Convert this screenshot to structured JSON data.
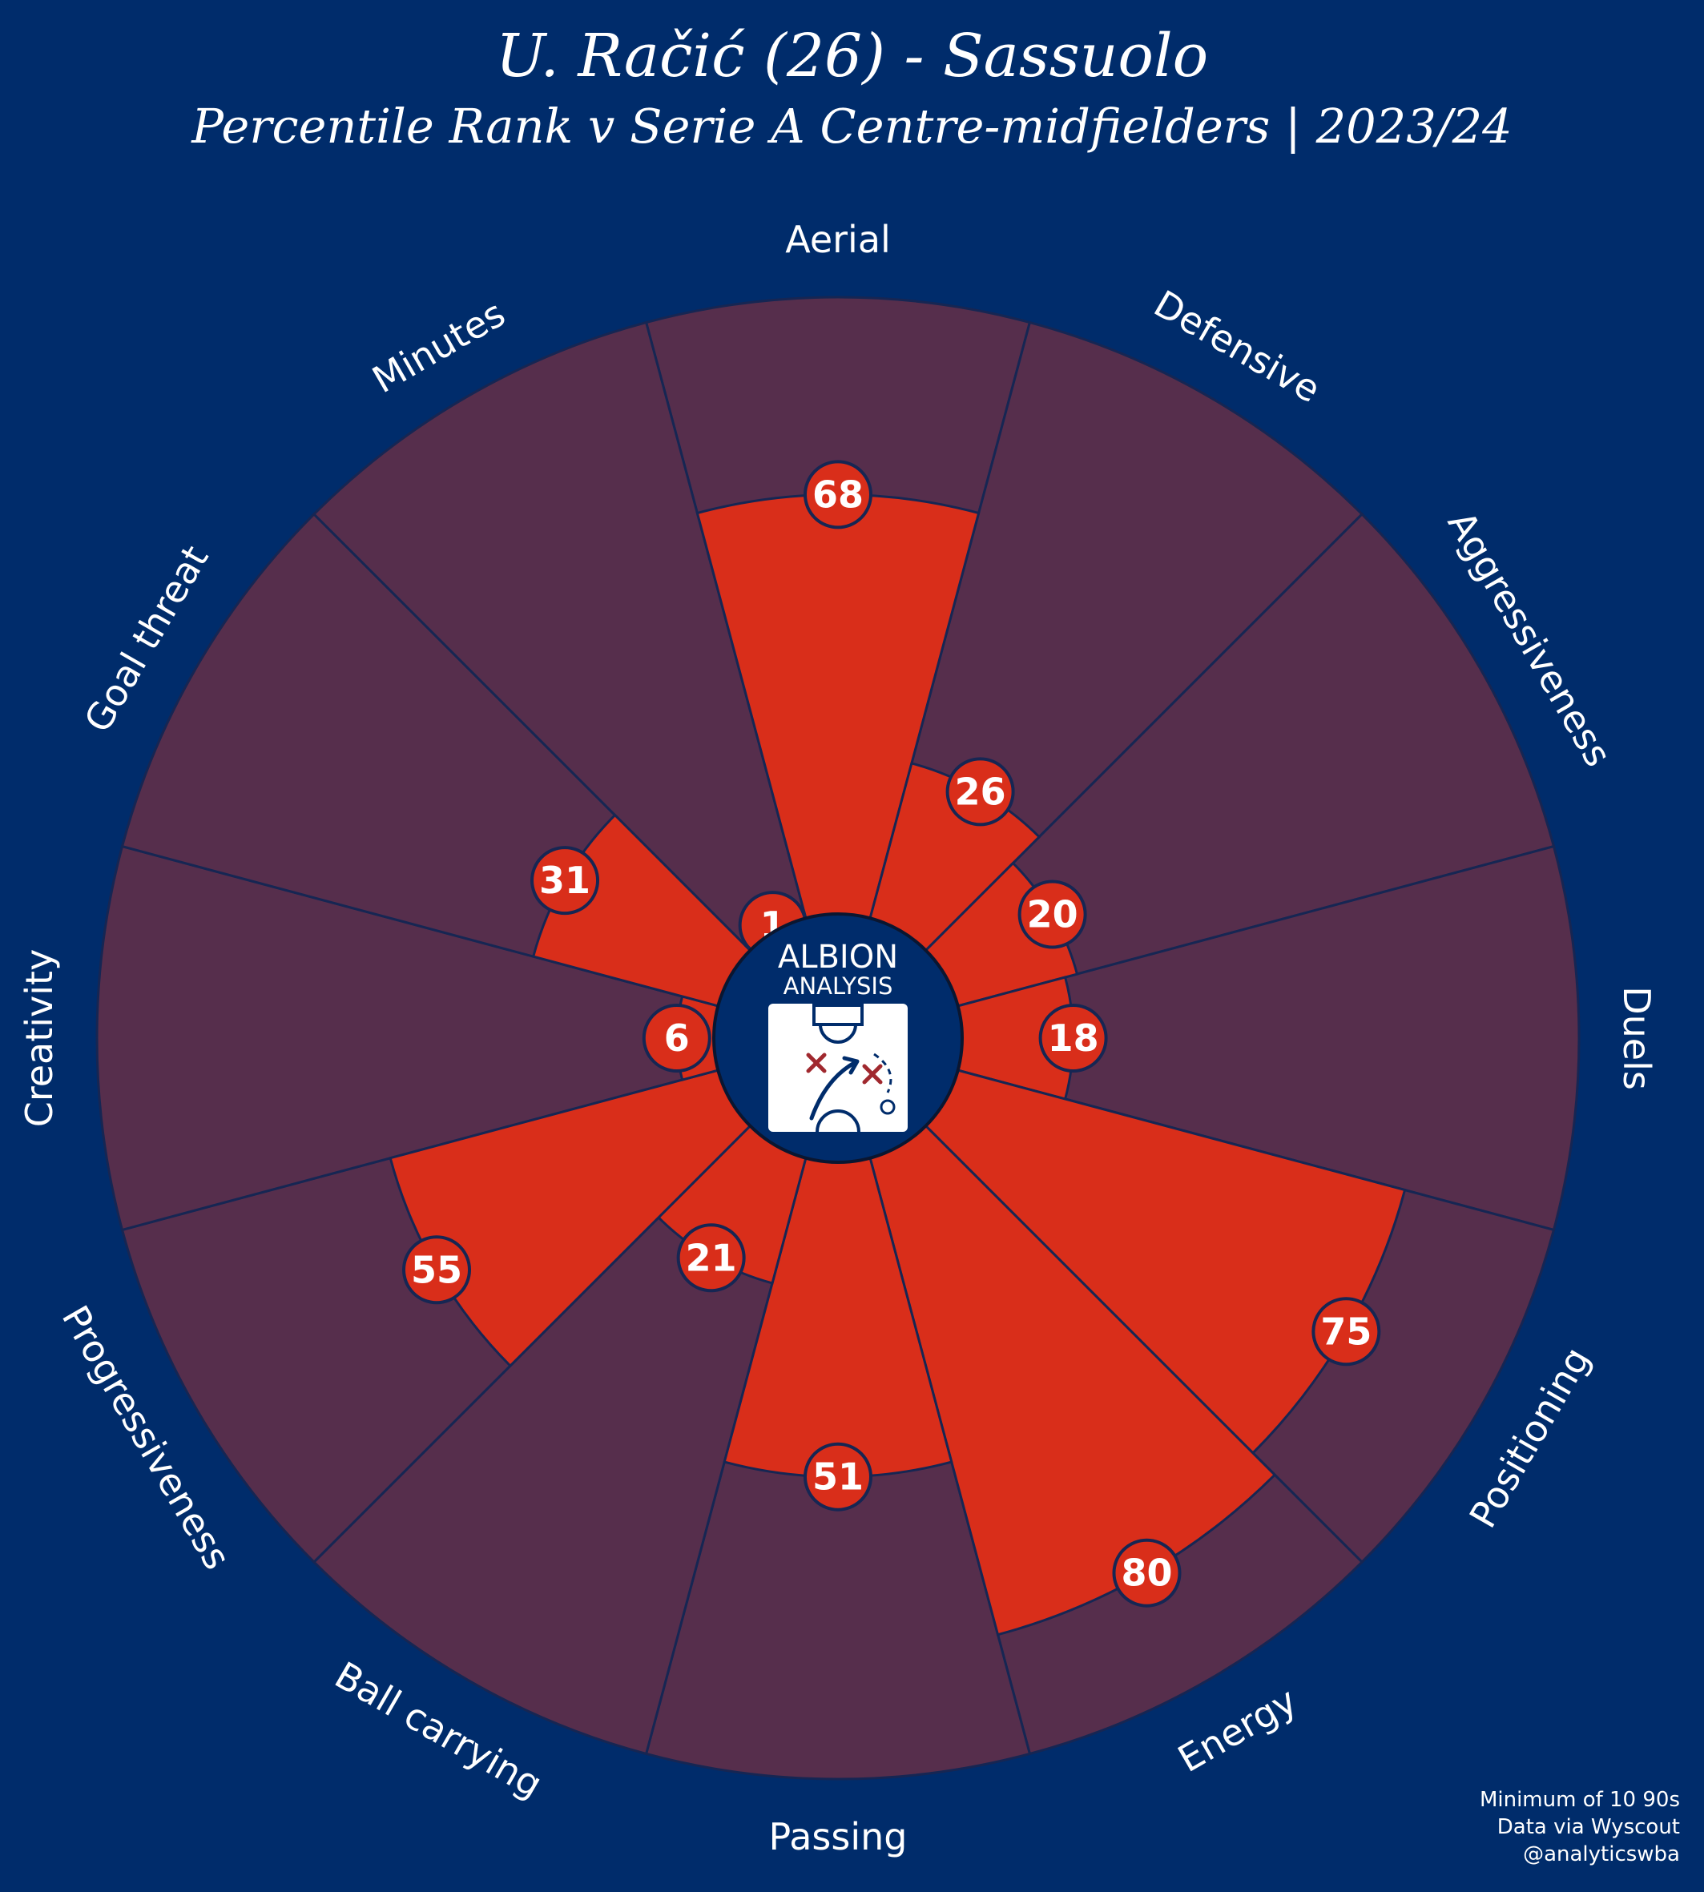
{
  "header": {
    "title": "U. Račić (26) - Sassuolo",
    "subtitle": "Percentile Rank v Serie A Centre-midfielders | 2023/24"
  },
  "logo": {
    "line1": "ALBION",
    "line2": "ANALYSIS",
    "icon": "tactics-board-icon"
  },
  "footer": {
    "line1": "Minimum of 10 90s",
    "line2": "Data via Wyscout",
    "line3": "@analyticswba"
  },
  "colors": {
    "background": "#002c6b",
    "slice_background": "#562e4c",
    "value_fill": "#d92e1a",
    "edge": "#162653"
  },
  "chart_data": {
    "type": "pie",
    "variant": "pizza",
    "title": "U. Račić (26) - Sassuolo",
    "subtitle": "Percentile Rank v Serie A Centre-midfielders | 2023/24",
    "range": [
      0,
      100
    ],
    "categories": [
      "Aerial",
      "Defensive",
      "Aggressiveness",
      "Duels",
      "Positioning",
      "Energy",
      "Passing",
      "Ball carrying",
      "Progressiveness",
      "Creativity",
      "Goal threat",
      "Minutes"
    ],
    "values": [
      68,
      26,
      20,
      18,
      75,
      80,
      51,
      21,
      55,
      6,
      31,
      1
    ]
  }
}
